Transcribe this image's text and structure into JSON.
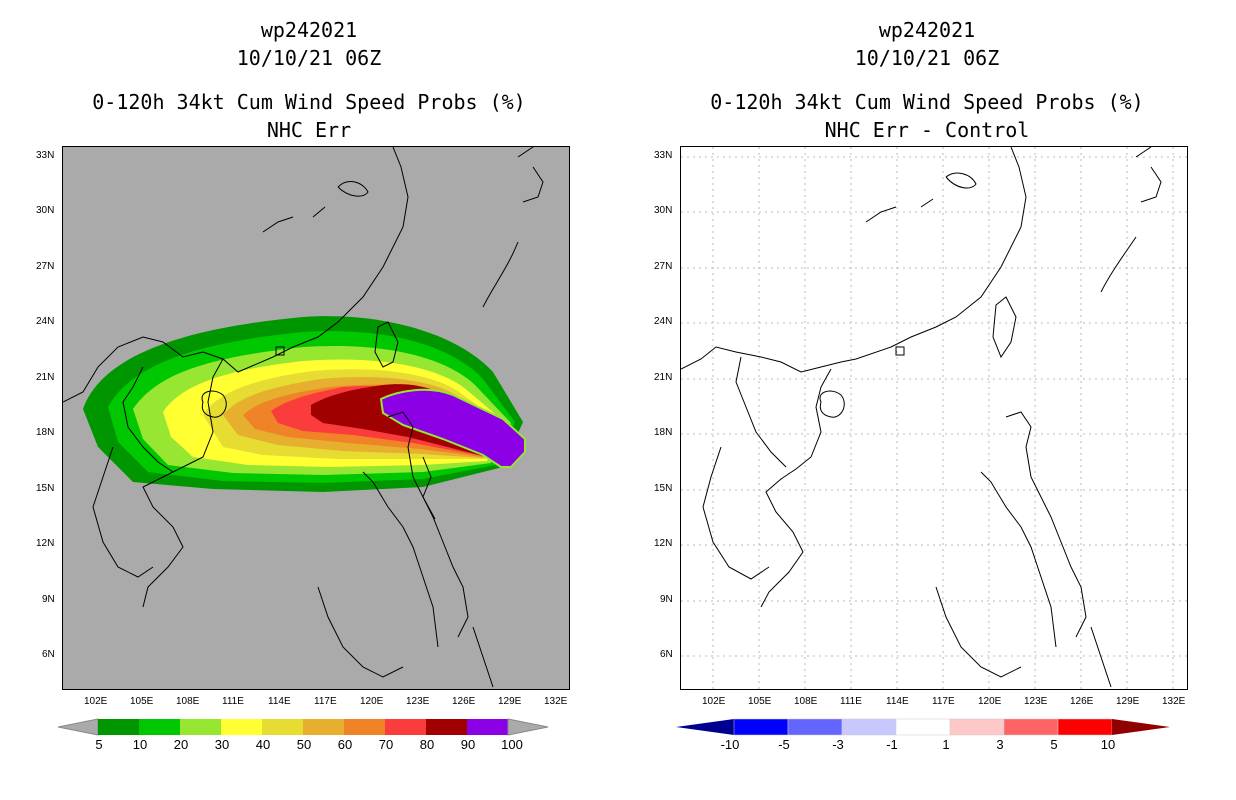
{
  "panels": [
    {
      "title_line1": "wp242021",
      "title_line2": "10/10/21 06Z",
      "title_line3": "0-120h 34kt Cum Wind Speed Probs (%)",
      "title_line4": "NHC Err",
      "background": "#aaaaaa"
    },
    {
      "title_line1": "wp242021",
      "title_line2": "10/10/21 06Z",
      "title_line3": "0-120h 34kt Cum Wind Speed Probs (%)",
      "title_line4": "NHC Err - Control",
      "background": "#ffffff"
    }
  ],
  "axes": {
    "lat_ticks": [
      "33N",
      "30N",
      "27N",
      "24N",
      "21N",
      "18N",
      "15N",
      "12N",
      "9N",
      "6N"
    ],
    "lon_ticks": [
      "102E",
      "105E",
      "108E",
      "111E",
      "114E",
      "117E",
      "120E",
      "123E",
      "126E",
      "129E",
      "132E"
    ]
  },
  "colorbar_left": {
    "labels": [
      "5",
      "10",
      "20",
      "30",
      "40",
      "50",
      "60",
      "70",
      "80",
      "90",
      "100"
    ],
    "colors": [
      "#009600",
      "#00c800",
      "#96e632",
      "#ffff32",
      "#e6dc32",
      "#e6af2d",
      "#f08228",
      "#fa3c3c",
      "#a00000",
      "#8c00e6"
    ]
  },
  "colorbar_right": {
    "labels": [
      "-10",
      "-5",
      "-3",
      "-1",
      "1",
      "3",
      "5",
      "10"
    ],
    "colors": [
      "#0000ff",
      "#6464ff",
      "#c8c8ff",
      "#ffffff",
      "#ffc8c8",
      "#ff6464",
      "#ff0000"
    ],
    "end_left": "#000090",
    "end_right": "#900000"
  }
}
